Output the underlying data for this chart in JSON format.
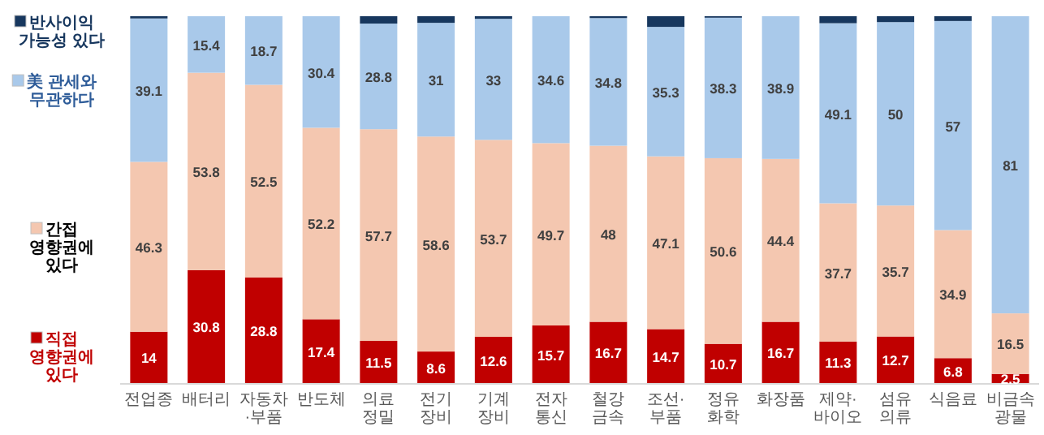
{
  "chart_data": {
    "type": "bar",
    "stacked": true,
    "legend": "left",
    "categories": [
      "전업종",
      "배터리",
      "자동차·부품",
      "반도체",
      "의료정밀",
      "전기장비",
      "기계장비",
      "전자통신",
      "철강금속",
      "조선·부품",
      "정유화학",
      "화장품",
      "제약·바이오",
      "섬유의류",
      "식음료",
      "비금속광물"
    ],
    "series": [
      {
        "name": "직접 영향권에 있다",
        "color": "#c00000",
        "values": [
          14,
          30.8,
          28.8,
          17.4,
          11.5,
          8.6,
          12.6,
          15.7,
          16.7,
          14.7,
          10.7,
          16.7,
          11.3,
          12.7,
          6.8,
          2.5
        ],
        "value_labels": [
          "14",
          "30.8",
          "28.8",
          "17.4",
          "11.5",
          "8.6",
          "12.6",
          "15.7",
          "16.7",
          "14.7",
          "10.7",
          "16.7",
          "11.3",
          "12.7",
          "6.8",
          "2.5"
        ]
      },
      {
        "name": "간접 영향권에 있다",
        "color": "#f4c7b0",
        "values": [
          46.3,
          53.8,
          52.5,
          52.2,
          57.7,
          58.6,
          53.7,
          49.7,
          48,
          47.1,
          50.6,
          44.4,
          37.7,
          35.7,
          34.9,
          16.5
        ],
        "value_labels": [
          "46.3",
          "53.8",
          "52.5",
          "52.2",
          "57.7",
          "58.6",
          "53.7",
          "49.7",
          "48",
          "47.1",
          "50.6",
          "44.4",
          "37.7",
          "35.7",
          "34.9",
          "16.5"
        ]
      },
      {
        "name": "美 관세와 무관하다",
        "color": "#a9c9ea",
        "values": [
          39.1,
          15.4,
          18.7,
          30.4,
          28.8,
          31,
          33,
          34.6,
          34.8,
          35.3,
          38.3,
          38.9,
          49.1,
          50,
          57,
          81
        ],
        "value_labels": [
          "39.1",
          "15.4",
          "18.7",
          "30.4",
          "28.8",
          "31",
          "33",
          "34.6",
          "34.8",
          "35.3",
          "38.3",
          "38.9",
          "49.1",
          "50",
          "57",
          "81"
        ]
      },
      {
        "name": "반사이익 가능성 있다",
        "color": "#17375e",
        "values": [
          0.6,
          0,
          0,
          0,
          2,
          1.8,
          0.7,
          0,
          0.5,
          2.9,
          0.4,
          0,
          1.9,
          1.6,
          1.3,
          0
        ]
      }
    ]
  }
}
